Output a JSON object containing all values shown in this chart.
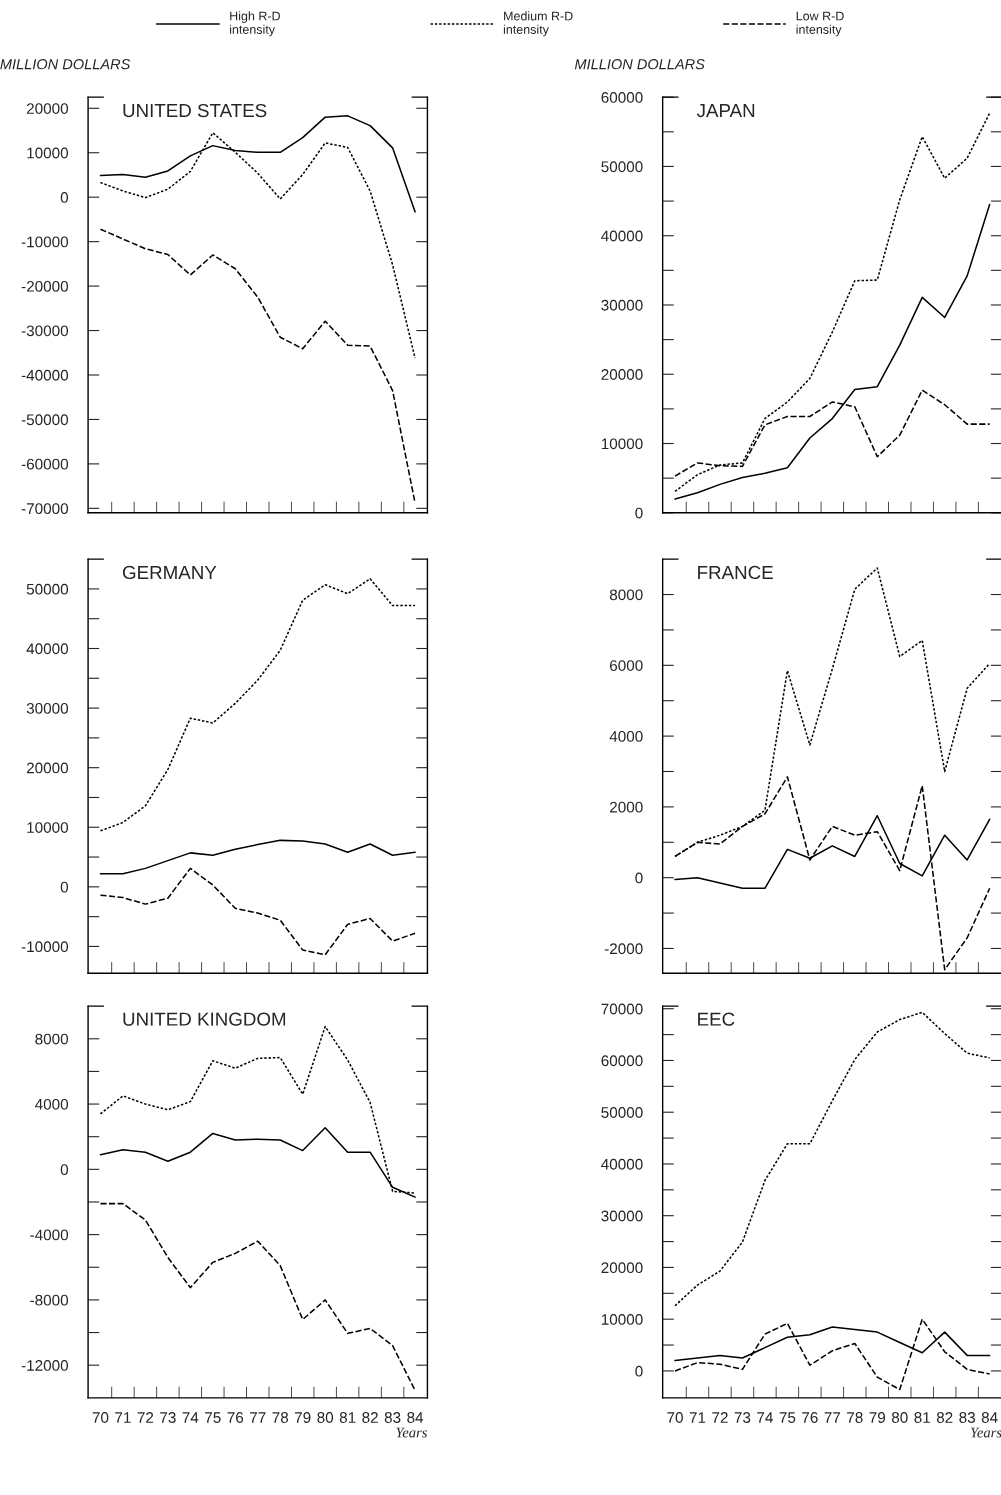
{
  "chart_data": [
    {
      "type": "line",
      "title": "UNITED STATES",
      "ylabel": "MILLION DOLLARS",
      "legend": "top",
      "tick_labels": "y",
      "categories": [
        "70",
        "71",
        "72",
        "73",
        "74",
        "75",
        "76",
        "77",
        "78",
        "79",
        "80",
        "81",
        "82",
        "83",
        "84"
      ],
      "ylim": [
        -71000,
        22500
      ],
      "yticks": [
        -70000,
        -60000,
        -50000,
        -40000,
        -30000,
        -20000,
        -10000,
        0,
        10000,
        20000
      ],
      "series": [
        {
          "name": "High R-D\nintensity",
          "color": "#000000",
          "line_style": "solid",
          "values": [
            4900,
            5100,
            4500,
            5900,
            9300,
            11600,
            10500,
            10100,
            10100,
            13400,
            18000,
            18300,
            16100,
            11100,
            -3300
          ]
        },
        {
          "name": "Medium R-D\nintensity",
          "color": "#000000",
          "line_style": "dotted",
          "values": [
            3300,
            1400,
            -100,
            1800,
            5800,
            14500,
            10100,
            5400,
            -400,
            5100,
            12200,
            11200,
            1400,
            -15200,
            -36200
          ]
        },
        {
          "name": "Low R-D\nintensity",
          "color": "#000000",
          "line_style": "dashed",
          "values": [
            -7200,
            -9400,
            -11600,
            -12900,
            -17500,
            -13000,
            -16100,
            -22500,
            -31500,
            -34100,
            -27900,
            -33300,
            -33500,
            -43500,
            -68800
          ]
        }
      ]
    },
    {
      "type": "line",
      "title": "JAPAN",
      "ylabel": "MILLION DOLLARS",
      "tick_labels": "y",
      "categories": [
        "70",
        "71",
        "72",
        "73",
        "74",
        "75",
        "76",
        "77",
        "78",
        "79",
        "80",
        "81",
        "82",
        "83",
        "84"
      ],
      "ylim": [
        0,
        60000
      ],
      "yticks": [
        0,
        {
          "value": 5000,
          "label": null
        },
        10000,
        {
          "value": 15000,
          "label": null
        },
        20000,
        {
          "value": 25000,
          "label": null
        },
        30000,
        {
          "value": 35000,
          "label": null
        },
        40000,
        {
          "value": 45000,
          "label": null
        },
        50000,
        {
          "value": 55000,
          "label": null
        },
        60000
      ],
      "series": [
        {
          "color": "#000000",
          "line_style": "solid",
          "values": [
            2000,
            2900,
            4100,
            5100,
            5700,
            6500,
            10800,
            13600,
            17800,
            18200,
            24200,
            31100,
            28200,
            34200,
            44500
          ]
        },
        {
          "color": "#000000",
          "line_style": "dotted",
          "values": [
            3100,
            5500,
            6900,
            7200,
            13600,
            16000,
            19400,
            26100,
            33500,
            33600,
            45200,
            54300,
            48300,
            51200,
            57700
          ]
        },
        {
          "color": "#000000",
          "line_style": "dashed",
          "values": [
            5300,
            7200,
            6800,
            6700,
            12700,
            13900,
            13900,
            16000,
            15300,
            8100,
            11200,
            17700,
            15600,
            12800,
            12800
          ]
        }
      ]
    },
    {
      "type": "line",
      "title": "GERMANY",
      "tick_labels": "y",
      "categories": [
        "70",
        "71",
        "72",
        "73",
        "74",
        "75",
        "76",
        "77",
        "78",
        "79",
        "80",
        "81",
        "82",
        "83",
        "84"
      ],
      "ylim": [
        -14500,
        55000
      ],
      "yticks": [
        -10000,
        {
          "value": -5000,
          "label": null
        },
        0,
        {
          "value": 5000,
          "label": null
        },
        10000,
        {
          "value": 15000,
          "label": null
        },
        20000,
        {
          "value": 25000,
          "label": null
        },
        30000,
        {
          "value": 35000,
          "label": null
        },
        40000,
        {
          "value": 45000,
          "label": null
        },
        50000
      ],
      "series": [
        {
          "color": "#000000",
          "line_style": "solid",
          "values": [
            2200,
            2200,
            3100,
            4400,
            5700,
            5300,
            6300,
            7100,
            7800,
            7700,
            7200,
            5800,
            7200,
            5300,
            5800
          ]
        },
        {
          "color": "#000000",
          "line_style": "dotted",
          "values": [
            9400,
            10800,
            13600,
            19700,
            28300,
            27500,
            30800,
            34700,
            39700,
            48100,
            50700,
            49200,
            51700,
            47200,
            47200
          ]
        },
        {
          "color": "#000000",
          "line_style": "dashed",
          "values": [
            -1400,
            -1800,
            -2900,
            -1900,
            3100,
            300,
            -3600,
            -4400,
            -5600,
            -10600,
            -11400,
            -6300,
            -5300,
            -9100,
            -7800
          ]
        }
      ]
    },
    {
      "type": "line",
      "title": "FRANCE",
      "tick_labels": "y",
      "categories": [
        "70",
        "71",
        "72",
        "73",
        "74",
        "75",
        "76",
        "77",
        "78",
        "79",
        "80",
        "81",
        "82",
        "83",
        "84"
      ],
      "ylim": [
        -2700,
        9000
      ],
      "yticks": [
        -2000,
        {
          "value": -1000,
          "label": null
        },
        0,
        {
          "value": 1000,
          "label": null
        },
        2000,
        {
          "value": 3000,
          "label": null
        },
        4000,
        {
          "value": 5000,
          "label": null
        },
        6000,
        {
          "value": 7000,
          "label": null
        },
        8000
      ],
      "series": [
        {
          "color": "#000000",
          "line_style": "solid",
          "values": [
            -50,
            0,
            -150,
            -300,
            -300,
            800,
            550,
            900,
            600,
            1750,
            400,
            50,
            1200,
            500,
            1650
          ]
        },
        {
          "color": "#000000",
          "line_style": "dotted",
          "values": [
            600,
            1000,
            1200,
            1450,
            1900,
            5850,
            3750,
            5900,
            8150,
            8750,
            6250,
            6700,
            3000,
            5350,
            6050
          ]
        },
        {
          "color": "#000000",
          "line_style": "dashed",
          "values": [
            600,
            1000,
            950,
            1450,
            1800,
            2850,
            500,
            1450,
            1200,
            1300,
            200,
            2600,
            -2600,
            -1700,
            -300
          ]
        }
      ]
    },
    {
      "type": "line",
      "title": "UNITED KINGDOM",
      "xlabel": "Years",
      "categories": [
        "70",
        "71",
        "72",
        "73",
        "74",
        "75",
        "76",
        "77",
        "78",
        "79",
        "80",
        "81",
        "82",
        "83",
        "84"
      ],
      "ylim": [
        -14000,
        10000
      ],
      "yticks": [
        -12000,
        {
          "value": -10000,
          "label": null
        },
        -8000,
        {
          "value": -6000,
          "label": null
        },
        -4000,
        {
          "value": -2000,
          "label": null
        },
        0,
        {
          "value": 2000,
          "label": null
        },
        4000,
        {
          "value": 6000,
          "label": null
        },
        8000
      ],
      "series": [
        {
          "color": "#000000",
          "line_style": "solid",
          "values": [
            900,
            1200,
            1050,
            500,
            1050,
            2200,
            1800,
            1850,
            1800,
            1150,
            2550,
            1050,
            1050,
            -1100,
            -1700
          ]
        },
        {
          "color": "#000000",
          "line_style": "dotted",
          "values": [
            3400,
            4500,
            4000,
            3650,
            4150,
            6650,
            6200,
            6800,
            6850,
            4600,
            8750,
            6700,
            4100,
            -1350,
            -1450
          ]
        },
        {
          "color": "#000000",
          "line_style": "dashed",
          "values": [
            -2100,
            -2100,
            -3100,
            -5400,
            -7250,
            -5700,
            -5150,
            -4400,
            -5900,
            -9200,
            -8000,
            -10050,
            -9750,
            -10800,
            -13550
          ]
        }
      ]
    },
    {
      "type": "line",
      "title": "EEC",
      "xlabel": "Years",
      "categories": [
        "70",
        "71",
        "72",
        "73",
        "74",
        "75",
        "76",
        "77",
        "78",
        "79",
        "80",
        "81",
        "82",
        "83",
        "84"
      ],
      "ylim": [
        -5200,
        70500
      ],
      "yticks": [
        0,
        {
          "value": 5000,
          "label": null
        },
        10000,
        {
          "value": 15000,
          "label": null
        },
        20000,
        {
          "value": 25000,
          "label": null
        },
        30000,
        {
          "value": 35000,
          "label": null
        },
        40000,
        {
          "value": 45000,
          "label": null
        },
        50000,
        {
          "value": 55000,
          "label": null
        },
        60000,
        {
          "value": 65000,
          "label": null
        },
        70000
      ],
      "series": [
        {
          "color": "#000000",
          "line_style": "solid",
          "values": [
            2000,
            2500,
            3000,
            2500,
            4500,
            6500,
            7000,
            8500,
            8000,
            7500,
            5500,
            3500,
            7500,
            3000,
            3000
          ]
        },
        {
          "color": "#000000",
          "line_style": "dotted",
          "values": [
            12600,
            16600,
            19300,
            24900,
            36800,
            43900,
            43900,
            52200,
            60200,
            65500,
            67900,
            69300,
            65200,
            61400,
            60500
          ]
        },
        {
          "color": "#000000",
          "line_style": "dashed",
          "values": [
            0,
            1600,
            1300,
            300,
            7100,
            9200,
            1100,
            3900,
            5300,
            -1200,
            -3600,
            10000,
            3700,
            300,
            -600
          ]
        }
      ]
    }
  ]
}
